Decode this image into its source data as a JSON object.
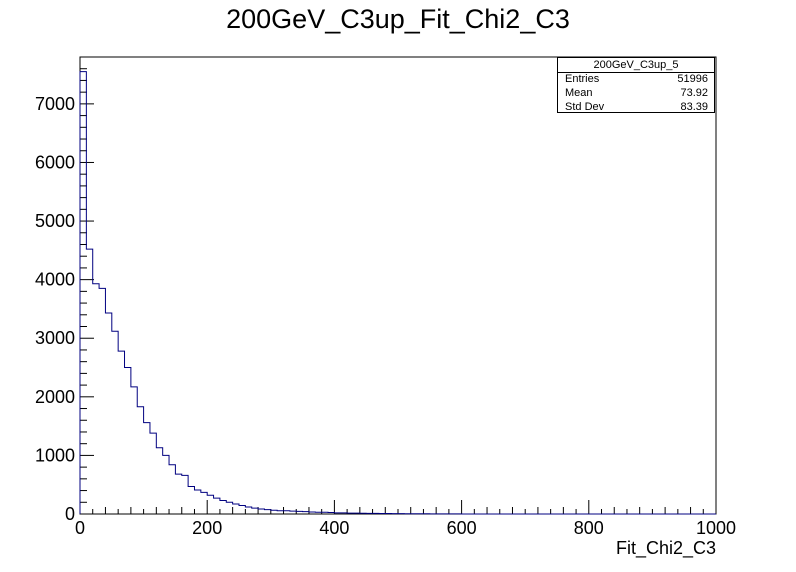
{
  "chart_data": {
    "type": "bar",
    "title": "200GeV_C3up_Fit_Chi2_C3",
    "xlabel": "Fit_Chi2_C3",
    "ylabel": "",
    "xlim": [
      0,
      1000
    ],
    "ylim": [
      0,
      7800
    ],
    "bin_width": 10,
    "x_ticks": [
      "0",
      "200",
      "400",
      "600",
      "800",
      "1000"
    ],
    "y_ticks": [
      "0",
      "1000",
      "2000",
      "3000",
      "4000",
      "5000",
      "6000",
      "7000"
    ],
    "line_color": "#000080",
    "values": [
      7550,
      4520,
      3930,
      3850,
      3430,
      3120,
      2780,
      2500,
      2170,
      1830,
      1560,
      1380,
      1130,
      1000,
      840,
      680,
      660,
      470,
      410,
      370,
      320,
      270,
      230,
      200,
      170,
      145,
      120,
      100,
      85,
      75,
      65,
      55,
      55,
      50,
      45,
      40,
      35,
      30,
      30,
      25,
      20,
      20,
      15,
      15,
      12,
      10,
      10,
      8,
      8,
      6,
      6,
      5,
      5,
      4,
      4,
      3,
      3,
      2,
      2,
      2,
      1,
      1,
      1,
      1,
      1,
      0,
      0,
      0,
      0,
      0,
      0,
      0,
      0,
      0,
      0,
      0,
      0,
      0,
      0,
      0,
      0,
      0,
      0,
      0,
      0,
      0,
      0,
      0,
      0,
      0,
      0,
      0,
      0,
      0,
      0,
      0,
      0,
      0,
      0,
      0
    ]
  },
  "stats": {
    "name": "200GeV_C3up_5",
    "entries_label": "Entries",
    "entries": "51996",
    "mean_label": "Mean",
    "mean": "73.92",
    "stddev_label": "Std Dev",
    "stddev": "83.39"
  }
}
